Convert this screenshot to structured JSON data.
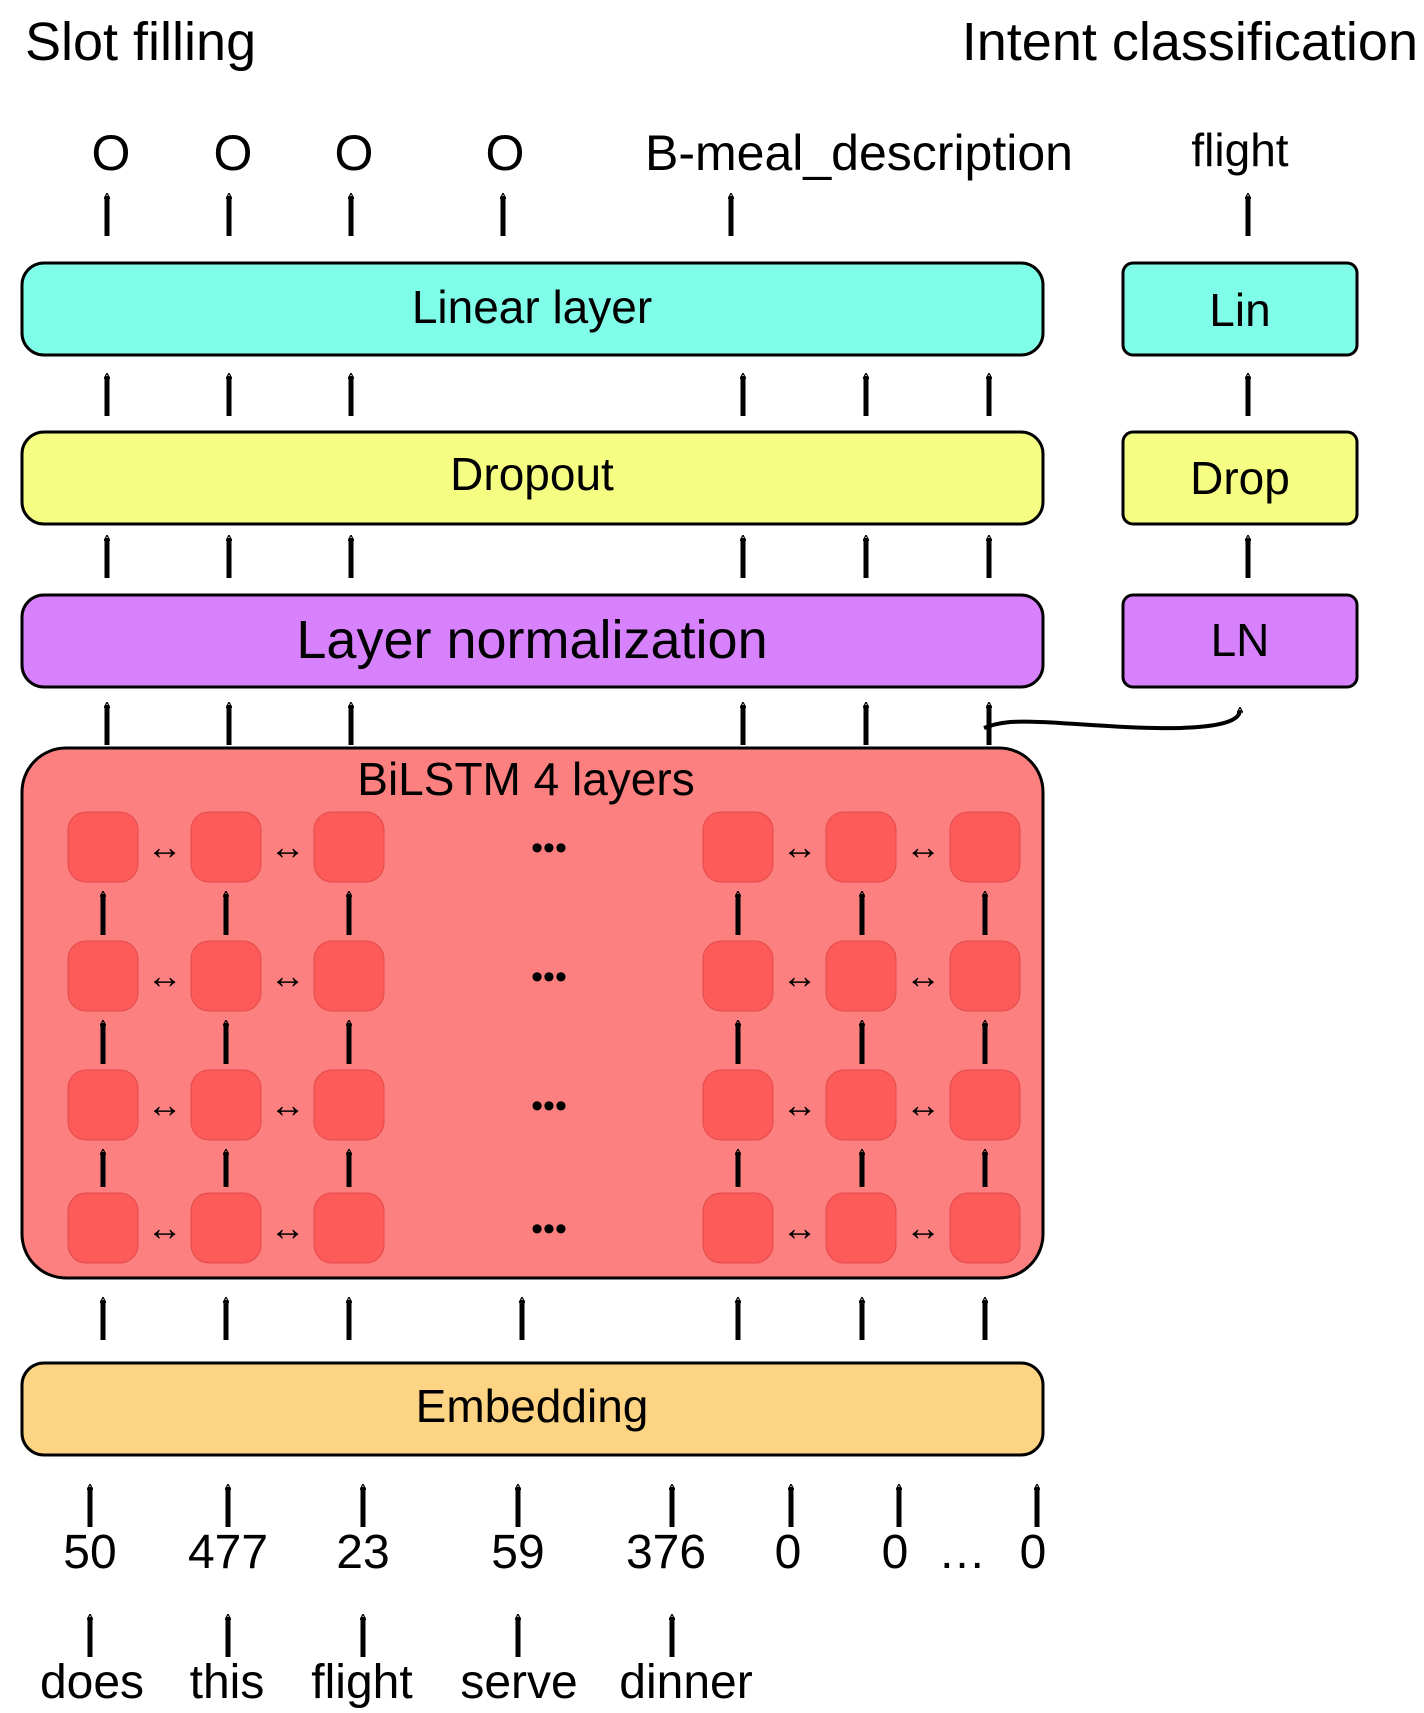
{
  "headers": {
    "slot": "Slot filling",
    "intent": "Intent classification"
  },
  "slot_outputs": [
    "O",
    "O",
    "O",
    "O",
    "B-meal_description"
  ],
  "intent_output": "flight",
  "layers": {
    "linear": "Linear layer",
    "dropout": "Dropout",
    "layernorm": "Layer normalization",
    "bilstm": "BiLSTM 4 layers",
    "embedding": "Embedding"
  },
  "intent_layers": {
    "linear": "Lin",
    "dropout": "Drop",
    "layernorm": "LN"
  },
  "token_ids": [
    "50",
    "477",
    "23",
    "59",
    "376",
    "0",
    "0",
    "0"
  ],
  "token_ids_ellipsis": "…",
  "bilstm_ellipsis": "•••",
  "bidirectional_arrow": "↔",
  "words": [
    "does",
    "this",
    "flight",
    "serve",
    "dinner"
  ],
  "colors": {
    "linear": "#80fde9",
    "dropout": "#f6fd83",
    "layernorm": "#d781fd",
    "bilstm": "#fd8080",
    "cell": "#fd5a5a",
    "embedding": "#fcd483"
  }
}
